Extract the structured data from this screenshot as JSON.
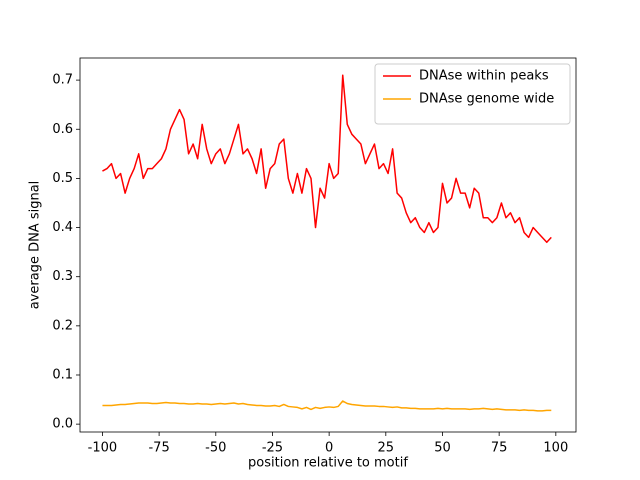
{
  "chart_data": {
    "type": "line",
    "x_label": "position relative to motif",
    "y_label": "average DNA signal",
    "x": [
      -100,
      -98,
      -96,
      -94,
      -92,
      -90,
      -88,
      -86,
      -84,
      -82,
      -80,
      -78,
      -76,
      -74,
      -72,
      -70,
      -68,
      -66,
      -64,
      -62,
      -60,
      -58,
      -56,
      -54,
      -52,
      -50,
      -48,
      -46,
      -44,
      -42,
      -40,
      -38,
      -36,
      -34,
      -32,
      -30,
      -28,
      -26,
      -24,
      -22,
      -20,
      -18,
      -16,
      -14,
      -12,
      -10,
      -8,
      -6,
      -4,
      -2,
      0,
      2,
      4,
      6,
      8,
      10,
      12,
      14,
      16,
      18,
      20,
      22,
      24,
      26,
      28,
      30,
      32,
      34,
      36,
      38,
      40,
      42,
      44,
      46,
      48,
      50,
      52,
      54,
      56,
      58,
      60,
      62,
      64,
      66,
      68,
      70,
      72,
      74,
      76,
      78,
      80,
      82,
      84,
      86,
      88,
      90,
      92,
      94,
      96,
      98
    ],
    "series": [
      {
        "name": "DNAse within peaks",
        "color": "#ff0000",
        "values": [
          0.515,
          0.52,
          0.53,
          0.5,
          0.51,
          0.47,
          0.5,
          0.52,
          0.55,
          0.5,
          0.52,
          0.52,
          0.53,
          0.54,
          0.56,
          0.6,
          0.62,
          0.64,
          0.62,
          0.55,
          0.57,
          0.54,
          0.61,
          0.56,
          0.53,
          0.55,
          0.56,
          0.53,
          0.55,
          0.58,
          0.61,
          0.55,
          0.56,
          0.54,
          0.51,
          0.56,
          0.48,
          0.52,
          0.53,
          0.57,
          0.58,
          0.5,
          0.47,
          0.51,
          0.47,
          0.52,
          0.5,
          0.4,
          0.48,
          0.46,
          0.53,
          0.5,
          0.51,
          0.71,
          0.61,
          0.59,
          0.58,
          0.57,
          0.53,
          0.55,
          0.57,
          0.52,
          0.53,
          0.51,
          0.56,
          0.47,
          0.46,
          0.43,
          0.41,
          0.42,
          0.4,
          0.39,
          0.41,
          0.39,
          0.4,
          0.49,
          0.45,
          0.46,
          0.5,
          0.47,
          0.47,
          0.44,
          0.48,
          0.47,
          0.42,
          0.42,
          0.41,
          0.42,
          0.45,
          0.42,
          0.43,
          0.41,
          0.42,
          0.39,
          0.38,
          0.4,
          0.39,
          0.38,
          0.37,
          0.38
        ]
      },
      {
        "name": "DNAse genome wide",
        "color": "#ffa500",
        "values": [
          0.038,
          0.038,
          0.038,
          0.039,
          0.04,
          0.04,
          0.041,
          0.042,
          0.043,
          0.043,
          0.043,
          0.042,
          0.042,
          0.043,
          0.044,
          0.043,
          0.043,
          0.042,
          0.042,
          0.041,
          0.041,
          0.042,
          0.041,
          0.041,
          0.04,
          0.041,
          0.042,
          0.041,
          0.042,
          0.043,
          0.041,
          0.042,
          0.04,
          0.039,
          0.038,
          0.038,
          0.037,
          0.037,
          0.038,
          0.036,
          0.04,
          0.036,
          0.035,
          0.034,
          0.031,
          0.034,
          0.03,
          0.034,
          0.032,
          0.034,
          0.035,
          0.034,
          0.036,
          0.047,
          0.042,
          0.04,
          0.039,
          0.038,
          0.037,
          0.037,
          0.037,
          0.036,
          0.036,
          0.035,
          0.034,
          0.035,
          0.033,
          0.033,
          0.032,
          0.032,
          0.031,
          0.031,
          0.031,
          0.031,
          0.032,
          0.031,
          0.032,
          0.031,
          0.031,
          0.031,
          0.031,
          0.03,
          0.031,
          0.031,
          0.032,
          0.031,
          0.03,
          0.031,
          0.03,
          0.029,
          0.029,
          0.029,
          0.028,
          0.029,
          0.028,
          0.028,
          0.027,
          0.027,
          0.028,
          0.028
        ]
      }
    ],
    "xlim": [
      -109.9,
      108.9
    ],
    "ylim": [
      -0.016,
      0.745
    ],
    "xticks": [
      -100,
      -75,
      -50,
      -25,
      0,
      25,
      50,
      75,
      100
    ],
    "yticks": [
      {
        "value": 0,
        "label": "0.0"
      },
      0.1,
      0.2,
      0.3,
      0.4,
      0.5,
      0.6,
      0.7
    ],
    "legend": "upper right"
  }
}
